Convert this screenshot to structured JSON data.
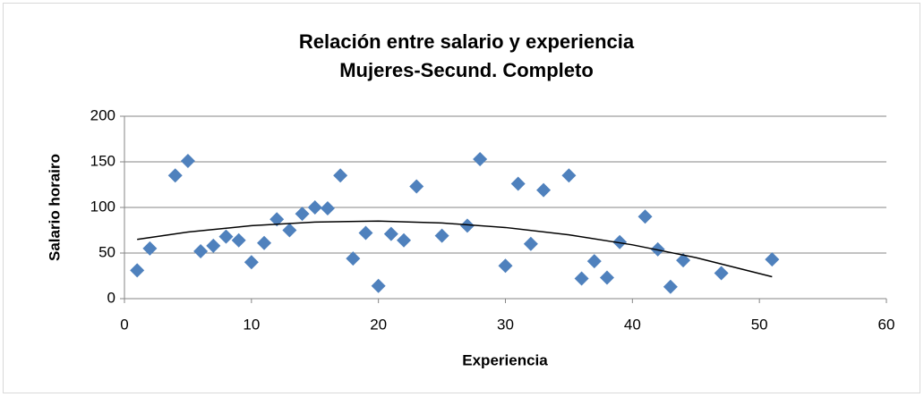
{
  "chart_data": {
    "type": "scatter",
    "title": "Relación entre salario y experiencia",
    "subtitle": "Mujeres-Secund. Completo",
    "x_label": "Experiencia",
    "y_label": "Salario horairo",
    "x": [
      1,
      2,
      4,
      5,
      6,
      7,
      8,
      9,
      10,
      11,
      12,
      13,
      14,
      15,
      16,
      17,
      18,
      19,
      20,
      21,
      22,
      23,
      25,
      27,
      28,
      30,
      31,
      32,
      33,
      35,
      36,
      37,
      38,
      39,
      41,
      42,
      43,
      44,
      47,
      51
    ],
    "values": [
      31,
      55,
      135,
      151,
      52,
      58,
      68,
      64,
      40,
      61,
      87,
      75,
      93,
      100,
      99,
      135,
      44,
      72,
      14,
      71,
      64,
      123,
      69,
      80,
      153,
      36,
      126,
      60,
      119,
      135,
      22,
      41,
      23,
      62,
      90,
      54,
      13,
      42,
      28,
      43
    ],
    "color": "#4f81bd",
    "trendline": {
      "color": "#000000",
      "x": [
        1,
        5,
        10,
        15,
        20,
        25,
        30,
        35,
        40,
        45,
        51
      ],
      "values": [
        65,
        73,
        80,
        84,
        85,
        83,
        78,
        70,
        59,
        45,
        24
      ]
    },
    "xlim": [
      0,
      60
    ],
    "xticks": [
      0,
      10,
      20,
      30,
      40,
      50,
      60
    ],
    "ylim": [
      0,
      200
    ],
    "yticks": [
      0,
      50,
      100,
      150,
      200
    ],
    "grid": true
  }
}
